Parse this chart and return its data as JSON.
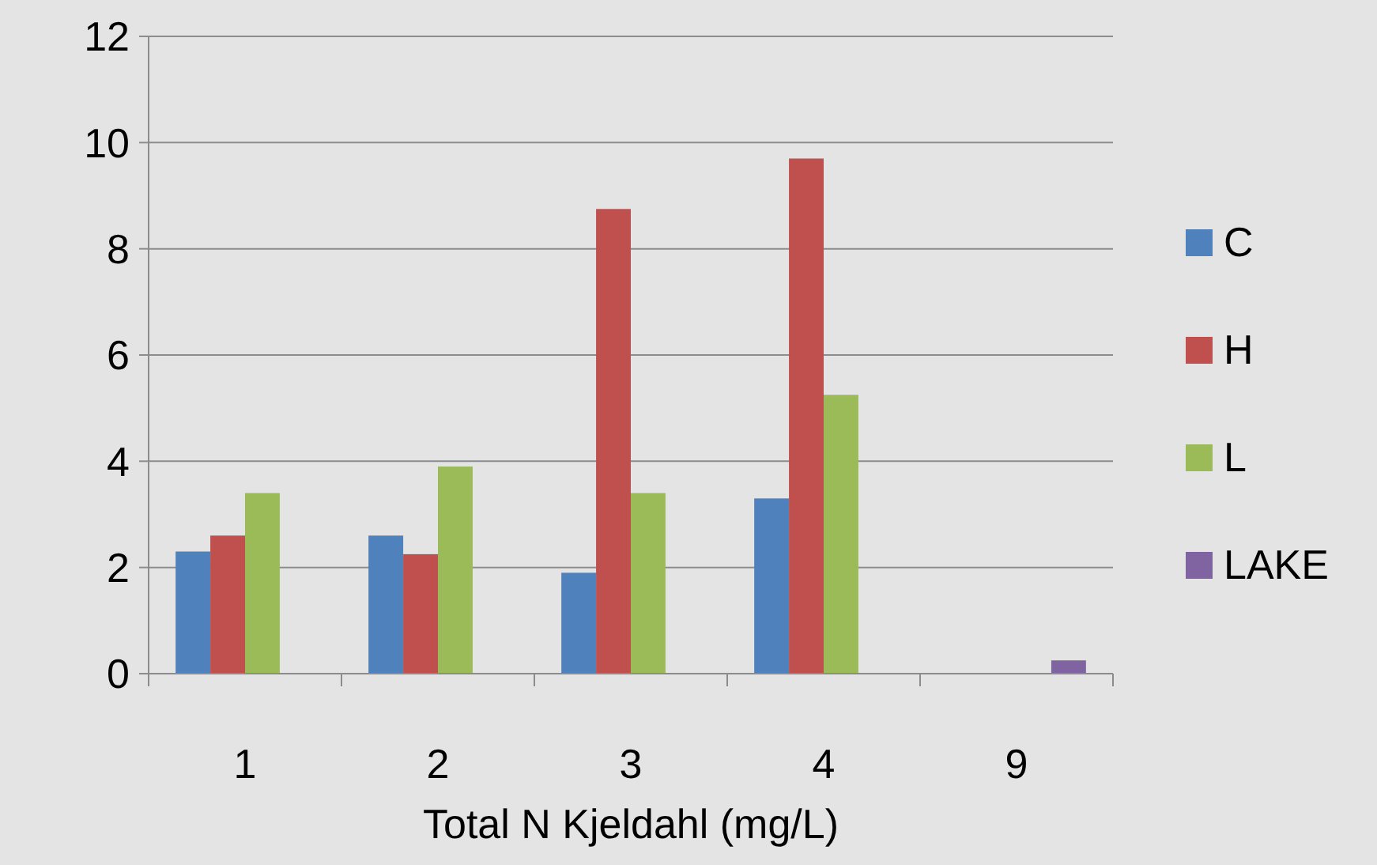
{
  "chart_data": {
    "type": "bar",
    "xlabel": "Total N Kjeldahl (mg/L)",
    "categories": [
      "1",
      "2",
      "3",
      "4",
      "9"
    ],
    "series": [
      {
        "name": "C",
        "color": "#4f81bd",
        "values": [
          2.3,
          2.6,
          1.9,
          3.3,
          null
        ]
      },
      {
        "name": "H",
        "color": "#c0504d",
        "values": [
          2.6,
          2.25,
          8.75,
          9.7,
          null
        ]
      },
      {
        "name": "L",
        "color": "#9bbb59",
        "values": [
          3.4,
          3.9,
          3.4,
          5.25,
          null
        ]
      },
      {
        "name": "LAKE",
        "color": "#8064a2",
        "values": [
          null,
          null,
          null,
          null,
          0.25
        ]
      }
    ],
    "ylim": [
      0,
      12
    ],
    "yticks": [
      0,
      2,
      4,
      6,
      8,
      10,
      12
    ],
    "grid": "y",
    "legend": "right"
  }
}
